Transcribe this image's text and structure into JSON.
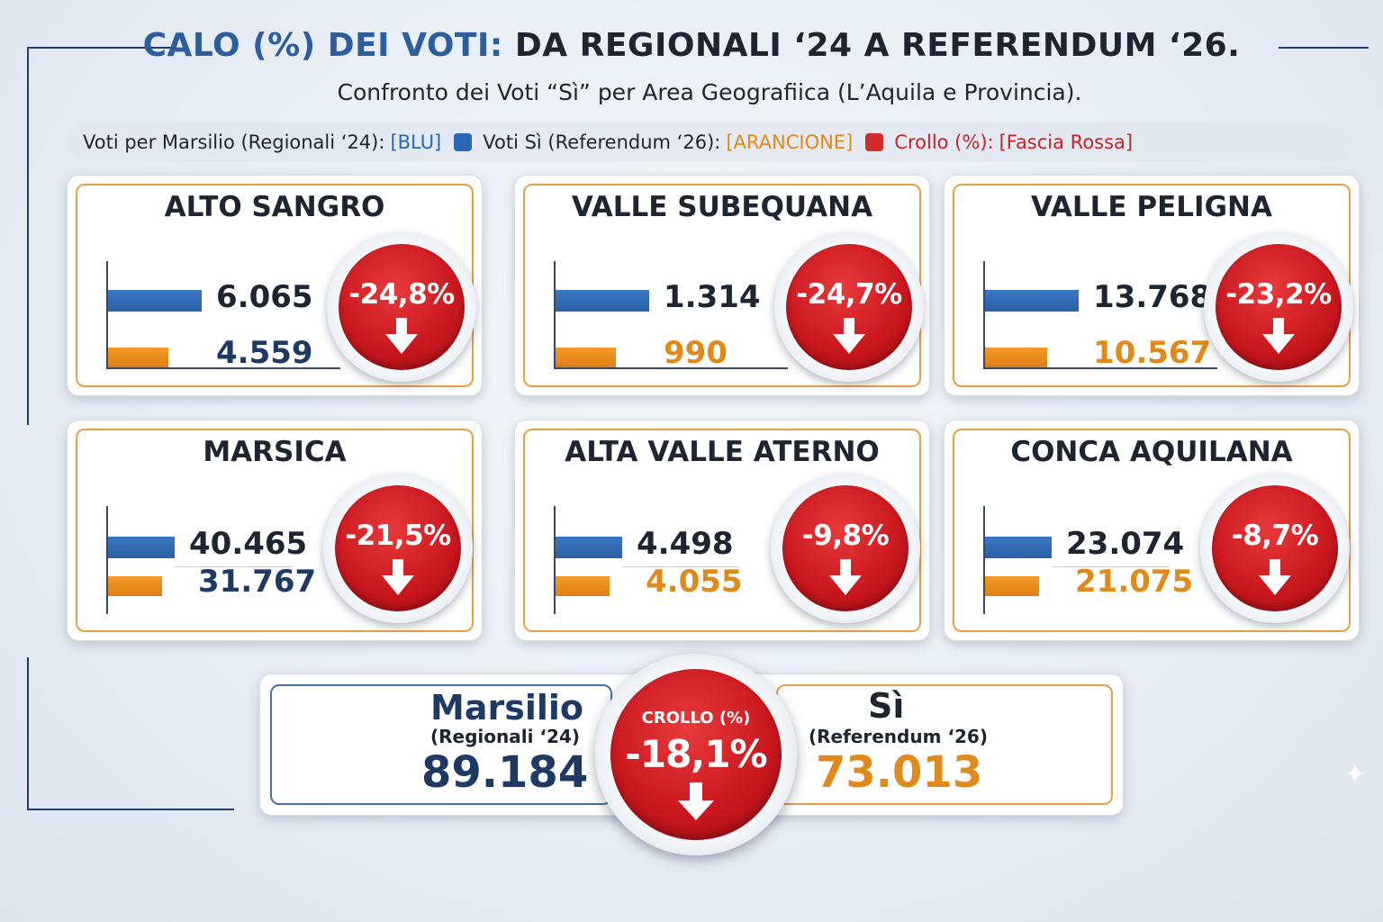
{
  "title": {
    "part_blue": "CALO (%) DEI VOTI:",
    "part_dark": "DA REGIONALI ‘24 A REFERENDUM ‘26."
  },
  "subtitle": "Confronto dei Voti “Sì” per Area Geografiica (L’Aquila e Provincia).",
  "legend": {
    "marsilio_label": "Voti per Marsilio (Regionali ‘24):",
    "marsilio_color_name": "[BLU]",
    "si_label": "Voti Sì (Referendum ‘26):",
    "si_color_name": "[ARANCIONE]",
    "crollo_label": "Crollo (%):",
    "crollo_color_name": "[Fascia Rossa]"
  },
  "colors": {
    "blue": "#2a68b5",
    "orange": "#e08a1c",
    "red": "#c8161d",
    "navy": "#1e3a64"
  },
  "chart_data": {
    "type": "bar",
    "title": "CALO (%) DEI VOTI: DA REGIONALI ‘24 A REFERENDUM ‘26.",
    "subtitle": "Confronto dei Voti “Sì” per Area Geografiica (L’Aquila e Provincia).",
    "legend_placement": "top",
    "series_names": [
      "Voti per Marsilio (Regionali ‘24)",
      "Voti Sì (Referendum ‘26)"
    ],
    "areas": [
      {
        "name": "ALTO SANGRO",
        "marsilio": 6065,
        "marsilio_label": "6.065",
        "si": 4559,
        "si_label": "4.559",
        "crollo_label": "-24,8%",
        "si_color": "navy"
      },
      {
        "name": "VALLE SUBEQUANA",
        "marsilio": 1314,
        "marsilio_label": "1.314",
        "si": 990,
        "si_label": "990",
        "crollo_label": "-24,7%",
        "si_color": "orange"
      },
      {
        "name": "VALLE PELIGNA",
        "marsilio": 13768,
        "marsilio_label": "13.768",
        "si": 10567,
        "si_label": "10.567",
        "crollo_label": "-23,2%",
        "si_color": "orange"
      },
      {
        "name": "MARSICA",
        "marsilio": 40465,
        "marsilio_label": "40.465",
        "si": 31767,
        "si_label": "31.767",
        "crollo_label": "-21,5%",
        "si_color": "navy"
      },
      {
        "name": "ALTA VALLE ATERNO",
        "marsilio": 4498,
        "marsilio_label": "4.498",
        "si": 4055,
        "si_label": "4.055",
        "crollo_label": "-9,8%",
        "si_color": "orange"
      },
      {
        "name": "CONCA AQUILANA",
        "marsilio": 23074,
        "marsilio_label": "23.074",
        "si": 21075,
        "si_label": "21.075",
        "crollo_label": "-8,7%",
        "si_color": "orange"
      }
    ],
    "summary": {
      "left_name": "Marsilio",
      "left_sub": "(Regionali ‘24)",
      "left_value": "89.184",
      "center_label": "CROLLO (%)",
      "center_value": "-18,1%",
      "right_name": "Sì",
      "right_sub": "(Referendum ‘26)",
      "right_value": "73.013"
    }
  }
}
